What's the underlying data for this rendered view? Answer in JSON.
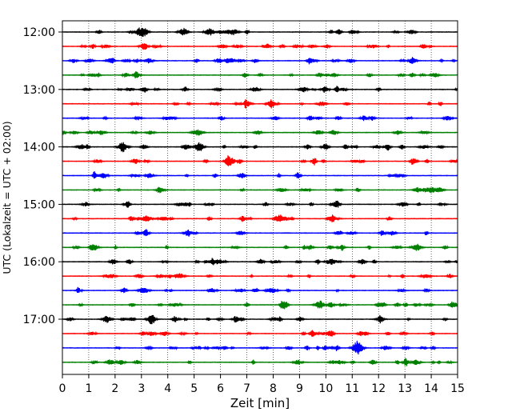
{
  "chart_data": {
    "type": "line",
    "title": "",
    "xlabel": "Zeit  [min]",
    "ylabel": "UTC (Lokalzeit = UTC + 02:00)",
    "xlim": [
      0,
      15
    ],
    "x_ticks": [
      0,
      1,
      2,
      3,
      4,
      5,
      6,
      7,
      8,
      9,
      10,
      11,
      12,
      13,
      14,
      15
    ],
    "x_tick_labels": [
      "0",
      "1",
      "2",
      "3",
      "4",
      "5",
      "6",
      "7",
      "8",
      "9",
      "10",
      "11",
      "12",
      "13",
      "14",
      "15"
    ],
    "y_tick_labels": [
      "12:00",
      "13:00",
      "14:00",
      "15:00",
      "16:00",
      "17:00"
    ],
    "y_tick_rows": [
      0,
      4,
      8,
      12,
      16,
      20
    ],
    "grid": "vertical dotted",
    "row_count": 24,
    "row_interval_min": 15,
    "start_time": "12:00",
    "colors": [
      "#000000",
      "#ff0000",
      "#0000ff",
      "#008000"
    ],
    "events": [
      {
        "row": 13,
        "x": 3.2,
        "amp": 4
      },
      {
        "row": 18,
        "x": 3.1,
        "amp": 4
      },
      {
        "row": 22,
        "x": 11.2,
        "amp": 9
      },
      {
        "row": 9,
        "x": 6.4,
        "amp": 4
      },
      {
        "row": 8,
        "x": 2.3,
        "amp": 4
      },
      {
        "row": 0,
        "x": 3.0,
        "amp": 4
      }
    ]
  }
}
